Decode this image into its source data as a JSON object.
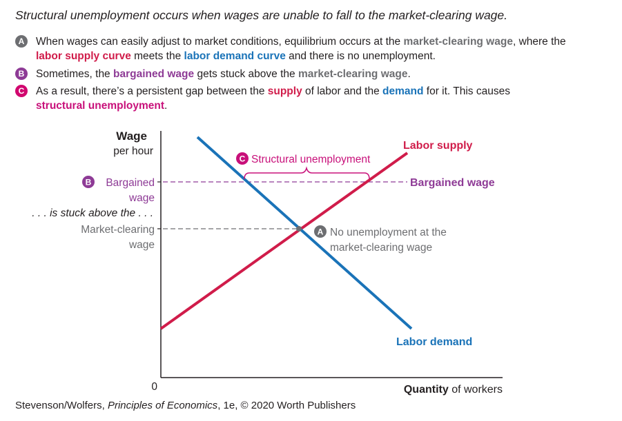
{
  "title": "Structural unemployment occurs when wages are unable to fall to the market-clearing wage.",
  "notes": [
    {
      "badge": "A",
      "parts": [
        {
          "text": "When wages can easily adjust to market conditions, equilibrium occurs at the "
        },
        {
          "text": "market-clearing wage",
          "style": "grey"
        },
        {
          "text": ", where the "
        },
        {
          "text": "labor supply curve",
          "style": "red"
        },
        {
          "text": " meets the "
        },
        {
          "text": "labor demand curve",
          "style": "blue"
        },
        {
          "text": " and there is no unemployment."
        }
      ]
    },
    {
      "badge": "B",
      "parts": [
        {
          "text": "Sometimes, the "
        },
        {
          "text": "bargained wage",
          "style": "purple"
        },
        {
          "text": " gets stuck above the "
        },
        {
          "text": "market-clearing wage",
          "style": "grey"
        },
        {
          "text": "."
        }
      ]
    },
    {
      "badge": "C",
      "parts": [
        {
          "text": "As a result, there’s a persistent gap between the "
        },
        {
          "text": "supply",
          "style": "red"
        },
        {
          "text": " of labor and the "
        },
        {
          "text": "demand",
          "style": "blue"
        },
        {
          "text": " for it. This causes "
        },
        {
          "text": "structural unemployment",
          "style": "pink"
        },
        {
          "text": "."
        }
      ]
    }
  ],
  "diagram": {
    "y_axis_title": "Wage",
    "y_axis_subtitle": "per hour",
    "x_axis_title_bold": "Quantity",
    "x_axis_title_rest": " of workers",
    "origin_label": "0",
    "badge_a": "A",
    "badge_b": "B",
    "badge_c": "C",
    "bargained_label_line1": "Bargained",
    "bargained_label_line2": "wage",
    "stuck_label": ". . . is stuck above the . . .",
    "market_label_line1": "Market-clearing",
    "market_label_line2": "wage",
    "labor_supply_label": "Labor supply",
    "labor_demand_label": "Labor demand",
    "bargained_wage_right_label": "Bargained wage",
    "structural_unemployment_label": "Structural unemployment",
    "equilibrium_label_line1": "No unemployment at the",
    "equilibrium_label_line2": "market-clearing wage"
  },
  "credit_prefix": "Stevenson/Wolfers, ",
  "credit_book": "Principles of Economics",
  "credit_suffix": ", 1e, © 2020 Worth Publishers",
  "colors": {
    "supply": "#d01c4a",
    "demand": "#1a73b8",
    "bargained": "#8e3b96",
    "market_clearing": "#6d6e71",
    "structural": "#c8107a"
  }
}
